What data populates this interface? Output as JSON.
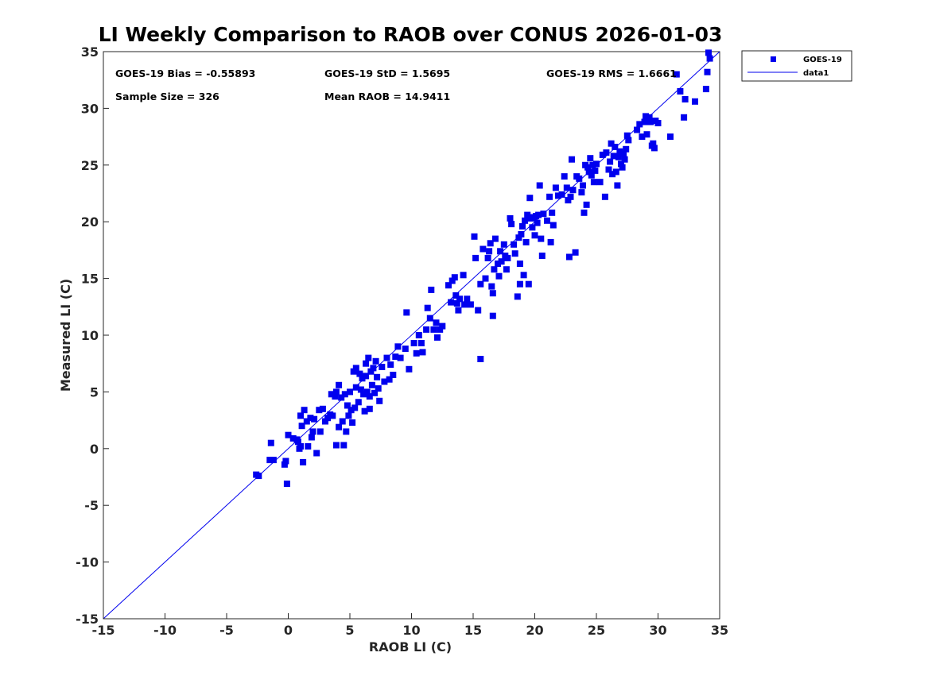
{
  "chart_data": {
    "type": "scatter",
    "title": "LI Weekly Comparison to RAOB over CONUS 2026-01-03",
    "xlabel": "RAOB LI (C)",
    "ylabel": "Measured LI (C)",
    "xlim": [
      -15,
      35
    ],
    "ylim": [
      -15,
      35
    ],
    "xticks": [
      "-15",
      "-10",
      "-5",
      "0",
      "5",
      "10",
      "15",
      "20",
      "25",
      "30",
      "35"
    ],
    "yticks": [
      "-15",
      "-10",
      "-5",
      "0",
      "5",
      "10",
      "15",
      "20",
      "25",
      "30",
      "35"
    ],
    "color": "#0000ee",
    "legend": {
      "position": "top-right-outside",
      "entries": [
        "GOES-19",
        "data1"
      ]
    },
    "stats": {
      "bias": "GOES-19 Bias = -0.55893",
      "std": "GOES-19 StD = 1.5695",
      "rms": "GOES-19 RMS = 1.6661",
      "sample_size": "Sample Size = 326",
      "mean_raob": "Mean RAOB = 14.9411"
    },
    "reference_line": {
      "name": "data1",
      "x": [
        -15,
        35
      ],
      "y": [
        -15,
        35
      ]
    },
    "series": [
      {
        "name": "GOES-19",
        "marker": "square",
        "points": [
          [
            -2.6,
            -2.3
          ],
          [
            -2.4,
            -2.4
          ],
          [
            -1.5,
            -1.0
          ],
          [
            -1.2,
            -1.0
          ],
          [
            -1.4,
            0.5
          ],
          [
            -0.2,
            -1.1
          ],
          [
            -0.3,
            -1.4
          ],
          [
            -0.1,
            -3.1
          ],
          [
            0.0,
            1.2
          ],
          [
            0.4,
            0.9
          ],
          [
            0.7,
            0.8
          ],
          [
            0.9,
            0.0
          ],
          [
            1.0,
            0.2
          ],
          [
            0.8,
            0.6
          ],
          [
            1.1,
            2.0
          ],
          [
            1.0,
            2.9
          ],
          [
            1.3,
            3.4
          ],
          [
            1.5,
            2.4
          ],
          [
            1.2,
            -1.2
          ],
          [
            1.6,
            0.2
          ],
          [
            1.9,
            1.0
          ],
          [
            2.0,
            1.5
          ],
          [
            2.1,
            2.6
          ],
          [
            1.8,
            2.7
          ],
          [
            2.3,
            -0.4
          ],
          [
            2.5,
            3.4
          ],
          [
            2.6,
            1.5
          ],
          [
            2.8,
            3.5
          ],
          [
            3.0,
            2.4
          ],
          [
            3.2,
            2.7
          ],
          [
            3.4,
            3.0
          ],
          [
            3.5,
            4.8
          ],
          [
            3.6,
            2.9
          ],
          [
            3.8,
            4.6
          ],
          [
            3.9,
            0.3
          ],
          [
            3.9,
            5.0
          ],
          [
            4.1,
            1.9
          ],
          [
            4.1,
            5.6
          ],
          [
            4.3,
            4.5
          ],
          [
            4.4,
            2.4
          ],
          [
            4.5,
            0.3
          ],
          [
            4.6,
            4.8
          ],
          [
            4.7,
            1.5
          ],
          [
            4.8,
            3.8
          ],
          [
            4.9,
            2.9
          ],
          [
            5.0,
            5.0
          ],
          [
            5.1,
            3.4
          ],
          [
            5.2,
            2.3
          ],
          [
            5.3,
            6.8
          ],
          [
            5.4,
            3.6
          ],
          [
            5.5,
            5.4
          ],
          [
            5.5,
            7.1
          ],
          [
            5.7,
            4.1
          ],
          [
            5.8,
            6.6
          ],
          [
            5.9,
            5.2
          ],
          [
            6.0,
            6.2
          ],
          [
            6.1,
            4.8
          ],
          [
            6.2,
            3.3
          ],
          [
            6.3,
            7.5
          ],
          [
            6.3,
            6.4
          ],
          [
            6.4,
            5.0
          ],
          [
            6.5,
            8.0
          ],
          [
            6.6,
            4.6
          ],
          [
            6.6,
            3.5
          ],
          [
            6.7,
            6.8
          ],
          [
            6.8,
            5.6
          ],
          [
            6.9,
            7.1
          ],
          [
            7.0,
            4.9
          ],
          [
            7.1,
            7.7
          ],
          [
            7.2,
            6.3
          ],
          [
            7.3,
            5.3
          ],
          [
            7.4,
            4.2
          ],
          [
            7.6,
            7.2
          ],
          [
            7.8,
            5.9
          ],
          [
            8.0,
            8.0
          ],
          [
            8.2,
            6.1
          ],
          [
            8.3,
            7.4
          ],
          [
            8.5,
            6.5
          ],
          [
            8.7,
            8.1
          ],
          [
            8.9,
            9.0
          ],
          [
            9.1,
            8.0
          ],
          [
            9.5,
            8.8
          ],
          [
            9.6,
            12.0
          ],
          [
            9.8,
            7.0
          ],
          [
            10.2,
            9.3
          ],
          [
            10.4,
            8.4
          ],
          [
            10.6,
            10.0
          ],
          [
            10.8,
            9.3
          ],
          [
            10.9,
            8.5
          ],
          [
            11.2,
            10.5
          ],
          [
            11.3,
            12.4
          ],
          [
            11.5,
            11.5
          ],
          [
            11.6,
            14.0
          ],
          [
            11.8,
            10.5
          ],
          [
            12.0,
            11.1
          ],
          [
            12.1,
            9.8
          ],
          [
            12.3,
            10.5
          ],
          [
            12.5,
            10.8
          ],
          [
            13.0,
            14.4
          ],
          [
            13.2,
            12.9
          ],
          [
            13.3,
            14.8
          ],
          [
            13.5,
            15.1
          ],
          [
            13.6,
            13.5
          ],
          [
            13.7,
            12.8
          ],
          [
            13.8,
            12.2
          ],
          [
            13.9,
            13.2
          ],
          [
            14.2,
            15.3
          ],
          [
            14.3,
            12.7
          ],
          [
            14.5,
            13.2
          ],
          [
            14.8,
            12.7
          ],
          [
            15.1,
            18.7
          ],
          [
            15.2,
            16.8
          ],
          [
            15.4,
            12.2
          ],
          [
            15.6,
            7.9
          ],
          [
            15.6,
            14.5
          ],
          [
            15.8,
            17.6
          ],
          [
            16.0,
            15.0
          ],
          [
            16.2,
            16.8
          ],
          [
            16.3,
            17.4
          ],
          [
            16.4,
            18.1
          ],
          [
            16.5,
            14.3
          ],
          [
            16.6,
            13.7
          ],
          [
            16.6,
            11.7
          ],
          [
            16.7,
            15.8
          ],
          [
            16.8,
            18.5
          ],
          [
            17.0,
            16.3
          ],
          [
            17.1,
            15.2
          ],
          [
            17.2,
            17.4
          ],
          [
            17.3,
            16.5
          ],
          [
            17.5,
            18.0
          ],
          [
            17.6,
            17.0
          ],
          [
            17.7,
            15.8
          ],
          [
            17.8,
            16.8
          ],
          [
            18.0,
            20.3
          ],
          [
            18.1,
            19.8
          ],
          [
            18.3,
            18.0
          ],
          [
            18.4,
            17.2
          ],
          [
            18.6,
            13.4
          ],
          [
            18.7,
            18.6
          ],
          [
            18.8,
            14.5
          ],
          [
            18.8,
            16.3
          ],
          [
            18.9,
            18.9
          ],
          [
            19.0,
            19.6
          ],
          [
            19.1,
            15.3
          ],
          [
            19.2,
            20.1
          ],
          [
            19.3,
            18.2
          ],
          [
            19.4,
            20.6
          ],
          [
            19.5,
            14.5
          ],
          [
            19.6,
            22.1
          ],
          [
            19.7,
            20.3
          ],
          [
            19.8,
            19.5
          ],
          [
            19.9,
            20.4
          ],
          [
            20.0,
            18.8
          ],
          [
            20.1,
            20.5
          ],
          [
            20.2,
            19.9
          ],
          [
            20.3,
            20.6
          ],
          [
            20.4,
            23.2
          ],
          [
            20.5,
            18.5
          ],
          [
            20.6,
            17.0
          ],
          [
            20.7,
            20.7
          ],
          [
            21.0,
            20.1
          ],
          [
            21.2,
            22.2
          ],
          [
            21.3,
            18.2
          ],
          [
            21.4,
            20.8
          ],
          [
            21.5,
            19.7
          ],
          [
            21.7,
            23.0
          ],
          [
            21.9,
            22.3
          ],
          [
            22.2,
            22.4
          ],
          [
            22.4,
            24.0
          ],
          [
            22.6,
            23.0
          ],
          [
            22.7,
            21.9
          ],
          [
            22.8,
            16.9
          ],
          [
            22.9,
            22.2
          ],
          [
            23.0,
            25.5
          ],
          [
            23.1,
            22.8
          ],
          [
            23.3,
            17.3
          ],
          [
            23.4,
            24.0
          ],
          [
            23.6,
            23.8
          ],
          [
            23.8,
            22.6
          ],
          [
            23.9,
            23.2
          ],
          [
            24.0,
            20.8
          ],
          [
            24.1,
            25.0
          ],
          [
            24.2,
            21.5
          ],
          [
            24.3,
            24.8
          ],
          [
            24.4,
            24.4
          ],
          [
            24.5,
            25.6
          ],
          [
            24.6,
            24.1
          ],
          [
            24.7,
            25.0
          ],
          [
            24.8,
            23.5
          ],
          [
            24.9,
            24.5
          ],
          [
            25.0,
            25.1
          ],
          [
            25.3,
            23.5
          ],
          [
            25.5,
            25.9
          ],
          [
            25.7,
            22.2
          ],
          [
            25.8,
            26.1
          ],
          [
            26.0,
            24.6
          ],
          [
            26.1,
            25.3
          ],
          [
            26.2,
            26.9
          ],
          [
            26.3,
            24.2
          ],
          [
            26.4,
            25.8
          ],
          [
            26.5,
            26.6
          ],
          [
            26.6,
            24.4
          ],
          [
            26.7,
            23.2
          ],
          [
            26.8,
            25.7
          ],
          [
            26.9,
            26.2
          ],
          [
            27.0,
            25.1
          ],
          [
            27.1,
            24.8
          ],
          [
            27.2,
            26.0
          ],
          [
            27.3,
            25.5
          ],
          [
            27.4,
            26.4
          ],
          [
            27.5,
            27.6
          ],
          [
            27.6,
            27.2
          ],
          [
            28.3,
            28.1
          ],
          [
            28.5,
            28.6
          ],
          [
            28.7,
            27.5
          ],
          [
            28.9,
            28.8
          ],
          [
            29.0,
            29.3
          ],
          [
            29.1,
            27.7
          ],
          [
            29.3,
            29.2
          ],
          [
            29.4,
            28.8
          ],
          [
            29.5,
            26.7
          ],
          [
            29.6,
            26.9
          ],
          [
            29.7,
            26.5
          ],
          [
            29.8,
            28.9
          ],
          [
            30.0,
            28.7
          ],
          [
            31.0,
            27.5
          ],
          [
            31.5,
            33.0
          ],
          [
            31.8,
            31.5
          ],
          [
            32.1,
            29.2
          ],
          [
            32.2,
            30.8
          ],
          [
            33.0,
            30.6
          ],
          [
            33.9,
            31.7
          ],
          [
            34.0,
            33.2
          ],
          [
            34.1,
            34.9
          ],
          [
            34.2,
            34.4
          ]
        ]
      }
    ]
  }
}
